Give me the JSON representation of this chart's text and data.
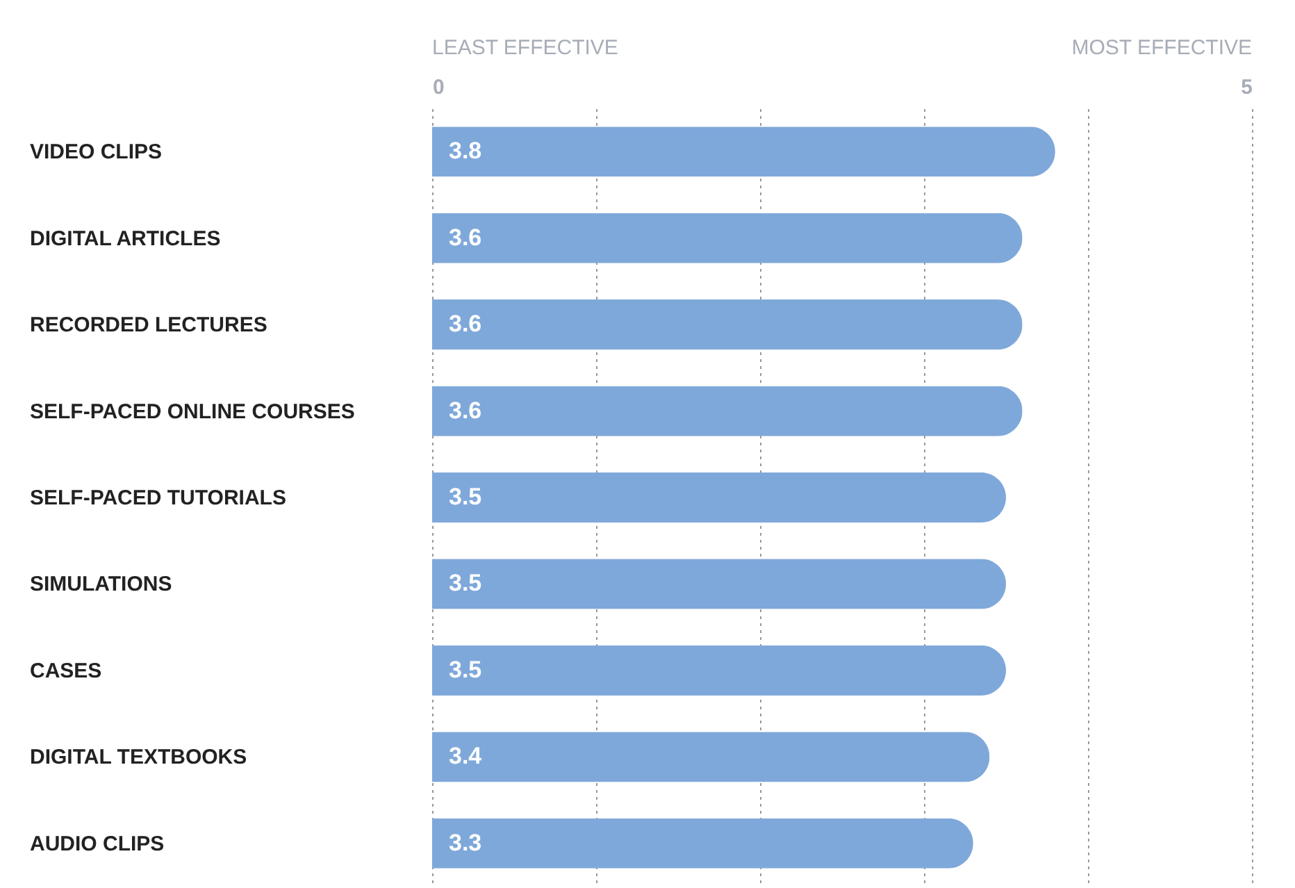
{
  "chart_data": {
    "type": "bar",
    "orientation": "horizontal",
    "categories": [
      "VIDEO CLIPS",
      "DIGITAL ARTICLES",
      "RECORDED LECTURES",
      "SELF-PACED ONLINE COURSES",
      "SELF-PACED TUTORIALS",
      "SIMULATIONS",
      "CASES",
      "DIGITAL TEXTBOOKS",
      "AUDIO CLIPS"
    ],
    "values": [
      3.8,
      3.6,
      3.6,
      3.6,
      3.5,
      3.5,
      3.5,
      3.4,
      3.3
    ],
    "color": "#7fa8da",
    "xlim": [
      0,
      5
    ],
    "xticks": [
      0,
      {
        "value": 1,
        "label": null
      },
      {
        "value": 2,
        "label": null
      },
      {
        "value": 3,
        "label": null
      },
      {
        "value": 4,
        "label": null
      },
      5
    ],
    "annotations": [
      "LEAST EFFECTIVE",
      "MOST EFFECTIVE"
    ],
    "grid": "x",
    "data_labels": true
  }
}
